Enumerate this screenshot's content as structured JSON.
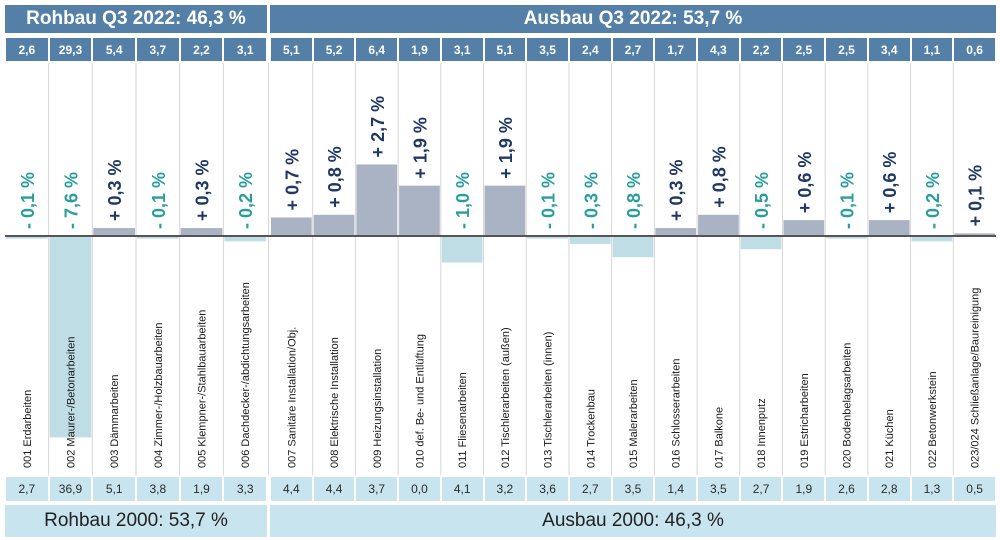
{
  "header": {
    "rohbau_title": "Rohbau Q3 2022: 46,3 %",
    "ausbau_title": "Ausbau Q3 2022: 53,7 %"
  },
  "footer": {
    "rohbau_label": "Rohbau 2000: 53,7 %",
    "ausbau_label": "Ausbau 2000: 46,3 %"
  },
  "colors": {
    "header_bg": "#5480a8",
    "footer_bg": "#c8e4ee",
    "positive_bar": "#a9b3c3",
    "negative_bar": "#bfdde4",
    "positive_text": "#1f3864",
    "negative_text": "#2a9d9d"
  },
  "chart_data": {
    "type": "bar",
    "groups": [
      {
        "name": "Rohbau",
        "share_2022": "46,3 %",
        "share_2000": "53,7 %"
      },
      {
        "name": "Ausbau",
        "share_2022": "53,7 %",
        "share_2000": "46,3 %"
      }
    ],
    "categories": [
      "001 Erdarbeiten",
      "002 Maurer-/Betonarbeiten",
      "003 Dämmarbeiten",
      "004 Zimmer-/Holzbauarbeiten",
      "005 Klempner-/Stahlbauarbeiten",
      "006 Dachdecker-/abdichtungsarbeiten",
      "007 Sanitäre Installation/Obj.",
      "008 Elektrische Installation",
      "009 Heizungsinstallation",
      "010 def. Be- und Entlüftung",
      "011 Fliesenarbeiten",
      "012 Tischlerarbeiten (außen)",
      "013 Tischlerarbeiten (innen)",
      "014 Trockenbau",
      "015 Malerarbeiten",
      "016 Schlosserarbeiten",
      "017 Balkone",
      "018 Innenputz",
      "019 Estricharbeiten",
      "020 Bodenbelagsarbeiten",
      "021 Küchen",
      "022 Betonwerkstein",
      "023/024 Schließanlage/Baureinigung"
    ],
    "share_2022": [
      "2,6",
      "29,3",
      "5,4",
      "3,7",
      "2,2",
      "3,1",
      "5,1",
      "5,2",
      "6,4",
      "1,9",
      "3,1",
      "5,1",
      "3,5",
      "2,4",
      "2,7",
      "1,7",
      "4,3",
      "2,2",
      "2,5",
      "2,5",
      "3,4",
      "1,1",
      "0,6"
    ],
    "share_2000": [
      "2,7",
      "36,9",
      "5,1",
      "3,8",
      "1,9",
      "3,3",
      "4,4",
      "4,4",
      "3,7",
      "0,0",
      "4,1",
      "3,2",
      "3,6",
      "2,7",
      "3,5",
      "1,4",
      "3,5",
      "2,7",
      "1,9",
      "2,6",
      "2,8",
      "1,3",
      "0,5"
    ],
    "change_labels": [
      "- 0,1 %",
      "- 7,6 %",
      "+ 0,3 %",
      "- 0,1 %",
      "+ 0,3 %",
      "- 0,2 %",
      "+ 0,7 %",
      "+ 0,8 %",
      "+ 2,7 %",
      "+ 1,9 %",
      "- 1,0 %",
      "+ 1,9 %",
      "- 0,1 %",
      "- 0,3 %",
      "- 0,8 %",
      "+ 0,3 %",
      "+ 0,8 %",
      "- 0,5 %",
      "+ 0,6 %",
      "- 0,1 %",
      "+ 0,6 %",
      "- 0,2 %",
      "+ 0,1 %"
    ],
    "values": [
      -0.1,
      -7.6,
      0.3,
      -0.1,
      0.3,
      -0.2,
      0.7,
      0.8,
      2.7,
      1.9,
      -1.0,
      1.9,
      -0.1,
      -0.3,
      -0.8,
      0.3,
      0.8,
      -0.5,
      0.6,
      -0.1,
      0.6,
      -0.2,
      0.1
    ]
  }
}
